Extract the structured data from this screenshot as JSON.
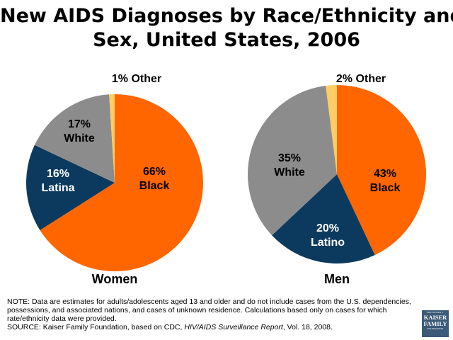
{
  "title": {
    "line1": "New AIDS Diagnoses by Race/Ethnicity and",
    "line2": "Sex, United States, 2006"
  },
  "colors": {
    "black": "#FF6600",
    "latino": "#0C3A5E",
    "white": "#8C8C8C",
    "other": "#FFCC66"
  },
  "chart_data": [
    {
      "type": "pie",
      "caption": "Women",
      "slices": [
        {
          "key": "black",
          "value": 66,
          "pct_label": "66%",
          "name_label": "Black"
        },
        {
          "key": "latino",
          "value": 16,
          "pct_label": "16%",
          "name_label": "Latina"
        },
        {
          "key": "white",
          "value": 17,
          "pct_label": "17%",
          "name_label": "White"
        },
        {
          "key": "other",
          "value": 1,
          "pct_label": "1%",
          "name_label": "Other"
        }
      ]
    },
    {
      "type": "pie",
      "caption": "Men",
      "slices": [
        {
          "key": "black",
          "value": 43,
          "pct_label": "43%",
          "name_label": "Black"
        },
        {
          "key": "latino",
          "value": 20,
          "pct_label": "20%",
          "name_label": "Latino"
        },
        {
          "key": "white",
          "value": 35,
          "pct_label": "35%",
          "name_label": "White"
        },
        {
          "key": "other",
          "value": 2,
          "pct_label": "2%",
          "name_label": "Other"
        }
      ]
    }
  ],
  "note": {
    "line1": "NOTE: Data are estimates for adults/adolescents aged 13 and older and do not include cases from the U.S. dependencies, possessions, and associated nations, and cases of unknown residence. Calculations based only on cases for which rate/ethnicity data were provided.",
    "source_prefix": "SOURCE: Kaiser Family Foundation, based on CDC, ",
    "source_italic": "HIV/AIDS Surveillance Report",
    "source_suffix": ", Vol. 18, 2008."
  },
  "logo": {
    "top": "THE HENRY J.",
    "line1": "KAISER",
    "line2": "FAMILY",
    "bottom": "FOUNDATION"
  }
}
